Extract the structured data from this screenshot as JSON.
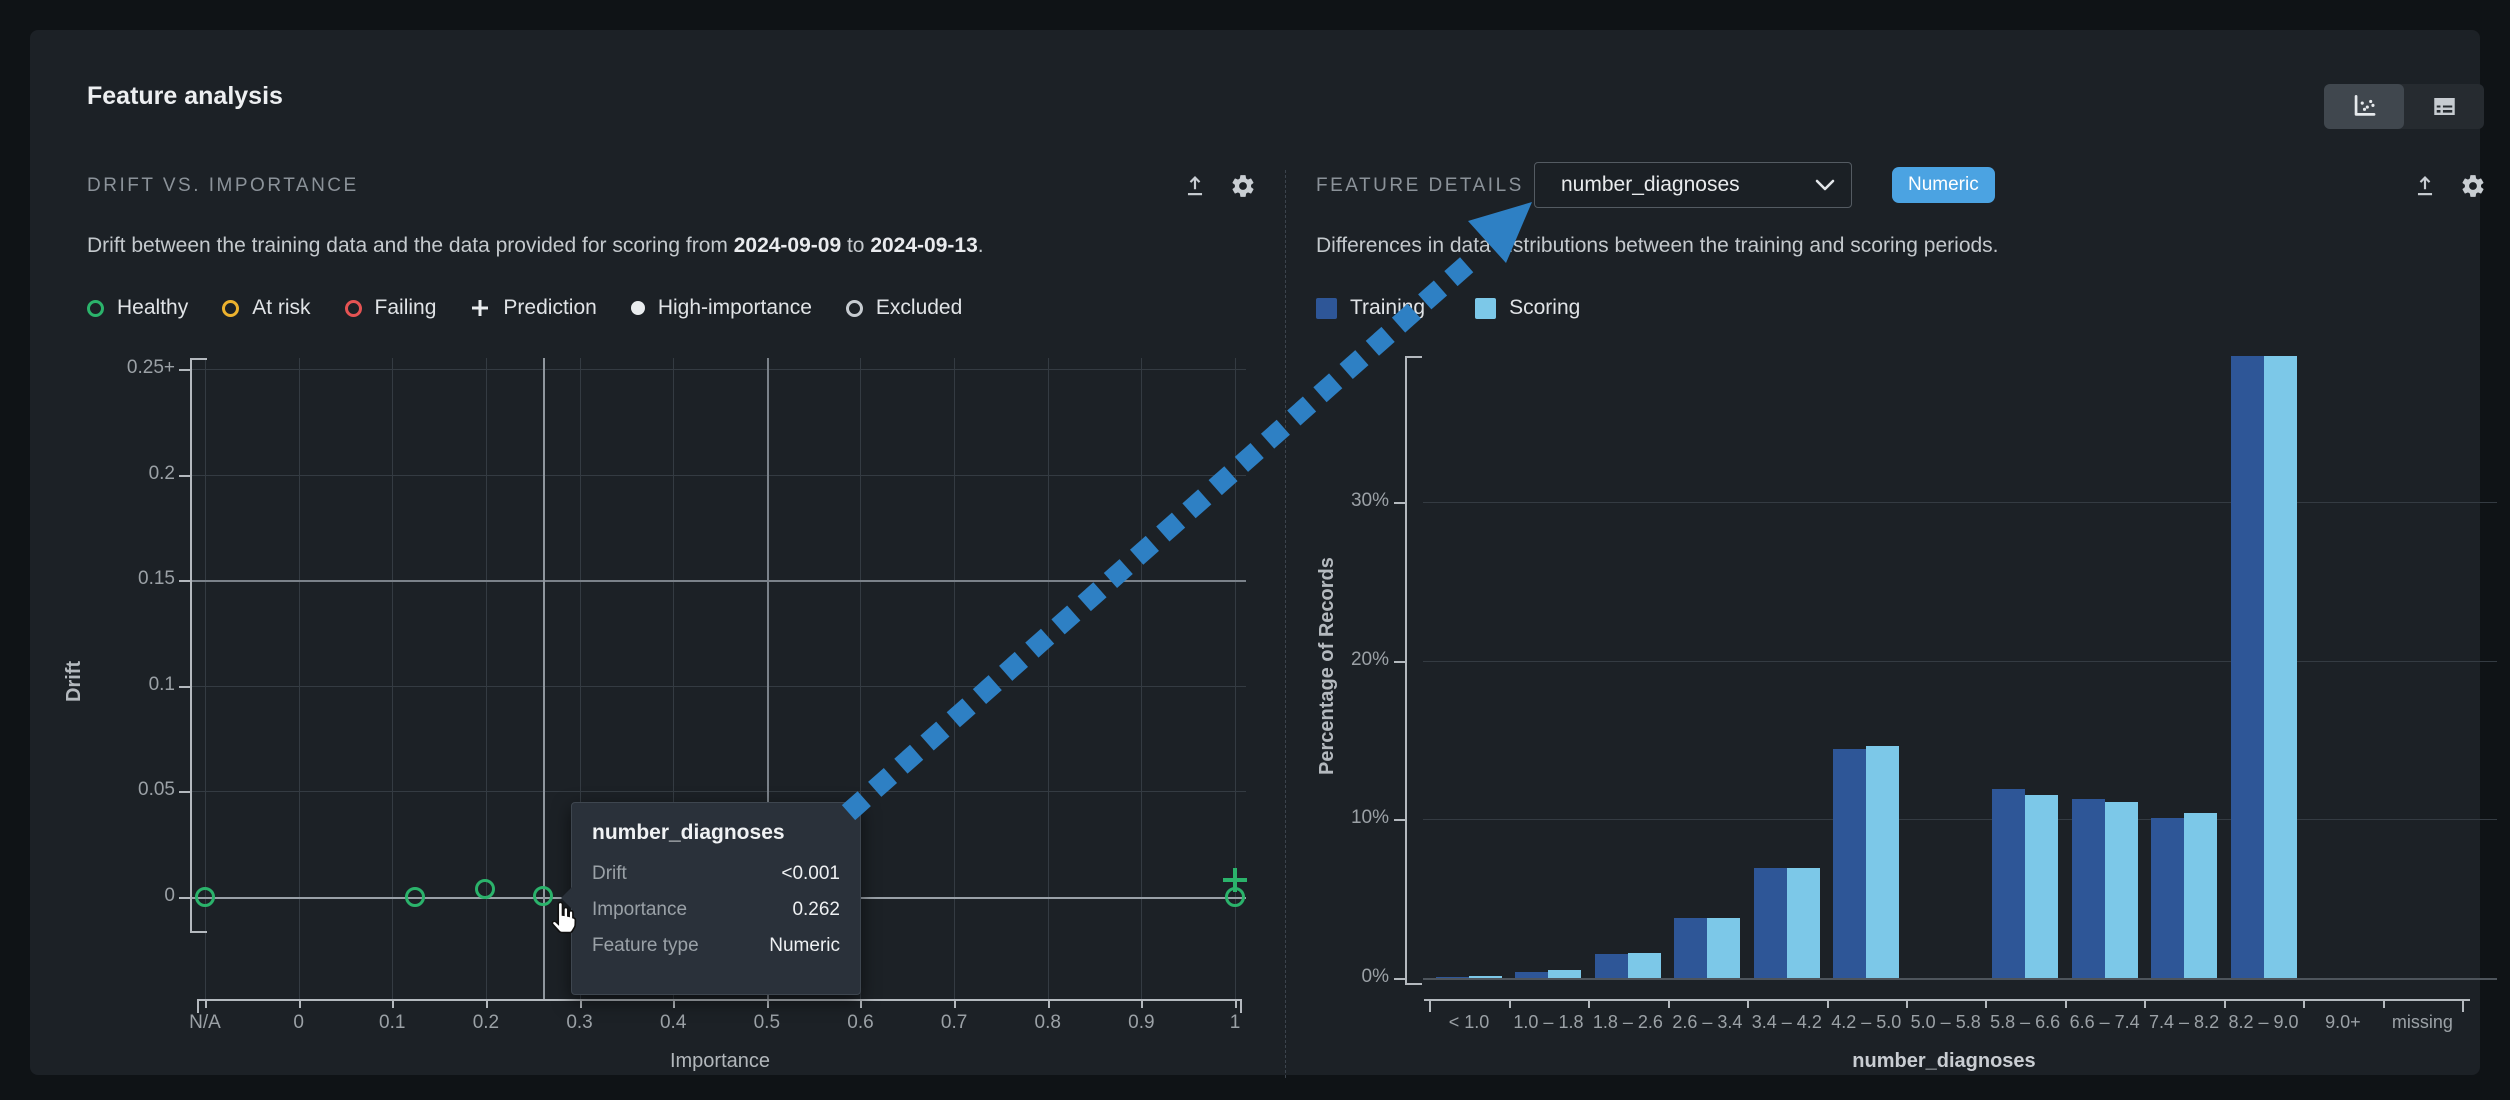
{
  "app": {
    "title": "Feature analysis"
  },
  "view_toggle": {
    "chart_view_icon": "scatter-chart-icon",
    "table_view_icon": "table-icon",
    "active": "chart"
  },
  "colors": {
    "healthy": "#2bb36b",
    "at_risk": "#ecb22e",
    "failing": "#e55353",
    "marker_white": "#e9ecee",
    "excluded": "#c6cbd0",
    "training": "#2e5697",
    "scoring": "#7cc8e8",
    "arrow": "#2e80c4",
    "badge_bg": "#4ba3e2",
    "grid": "#343b42",
    "grid_bright": "#7b828a",
    "zero_line": "#9aa1a8",
    "axis": "#b4b9be",
    "crosshair": "#8f969d"
  },
  "left_panel": {
    "title": "DRIFT VS. IMPORTANCE",
    "subtitle": {
      "prefix": "Drift between the training data and the data provided for scoring from ",
      "start_date": "2024-09-09",
      "middle": " to ",
      "end_date": "2024-09-13",
      "suffix": "."
    },
    "legend": [
      {
        "label": "Healthy",
        "marker": "ring",
        "color": "#2bb36b"
      },
      {
        "label": "At risk",
        "marker": "ring",
        "color": "#ecb22e"
      },
      {
        "label": "Failing",
        "marker": "ring",
        "color": "#e55353"
      },
      {
        "label": "Prediction",
        "marker": "plus",
        "color": "#e9ecee"
      },
      {
        "label": "High-importance",
        "marker": "dot",
        "color": "#e9ecee"
      },
      {
        "label": "Excluded",
        "marker": "ring",
        "color": "#c6cbd0"
      }
    ]
  },
  "right_panel": {
    "title": "FEATURE DETAILS",
    "feature_selector": {
      "value": "number_diagnoses",
      "icon": "chevron-down-icon"
    },
    "type_badge": "Numeric",
    "subtitle": "Differences in data distributions between the training and scoring periods.",
    "legend": [
      {
        "label": "Training",
        "color": "#2e5697"
      },
      {
        "label": "Scoring",
        "color": "#7cc8e8"
      }
    ]
  },
  "tooltip": {
    "feature": "number_diagnoses",
    "rows": [
      {
        "label": "Drift",
        "value": "<0.001"
      },
      {
        "label": "Importance",
        "value": "0.262"
      },
      {
        "label": "Feature type",
        "value": "Numeric"
      }
    ]
  },
  "chart_data": [
    {
      "type": "scatter",
      "title": "Drift vs. Importance",
      "xlabel": "Importance",
      "ylabel": "Drift",
      "x_ticks": [
        "N/A",
        "0",
        "0.1",
        "0.2",
        "0.3",
        "0.4",
        "0.5",
        "0.6",
        "0.7",
        "0.8",
        "0.9",
        "1"
      ],
      "y_ticks": [
        "0",
        "0.05",
        "0.1",
        "0.15",
        "0.2",
        "0.25+"
      ],
      "xlim": [
        0,
        1
      ],
      "ylim": [
        0,
        0.25
      ],
      "grid": true,
      "thresholds": {
        "drift": 0.15,
        "importance": 0.5
      },
      "points": [
        {
          "importance": "N/A",
          "drift": 0,
          "status": "healthy",
          "marker": "circle"
        },
        {
          "importance": 0.125,
          "drift": 0,
          "status": "healthy",
          "marker": "circle"
        },
        {
          "importance": 0.2,
          "drift": 0.004,
          "status": "healthy",
          "marker": "circle"
        },
        {
          "importance": 0.262,
          "drift": 0.0005,
          "status": "healthy",
          "marker": "circle",
          "feature": "number_diagnoses",
          "hovered": true
        },
        {
          "importance": 1,
          "drift": 0.008,
          "status": "healthy",
          "marker": "plus"
        },
        {
          "importance": 1,
          "drift": 0,
          "status": "healthy",
          "marker": "circle"
        }
      ]
    },
    {
      "type": "bar",
      "categories": [
        "< 1.0",
        "1.0 – 1.8",
        "1.8 – 2.6",
        "2.6 – 3.4",
        "3.4 – 4.2",
        "4.2 – 5.0",
        "5.0 – 5.8",
        "5.8 – 6.6",
        "6.6 – 7.4",
        "7.4 – 8.2",
        "8.2 – 9.0",
        "9.0+",
        "missing"
      ],
      "series": [
        {
          "name": "Training",
          "color": "#2e5697",
          "values": [
            0.05,
            0.4,
            1.5,
            3.8,
            6.9,
            14.4,
            0,
            11.9,
            11.3,
            10.1,
            39.3,
            0,
            0
          ]
        },
        {
          "name": "Scoring",
          "color": "#7cc8e8",
          "values": [
            0.1,
            0.5,
            1.6,
            3.8,
            6.9,
            14.6,
            0,
            11.5,
            11.1,
            10.4,
            39.5,
            0,
            0
          ]
        }
      ],
      "xlabel": "number_diagnoses",
      "ylabel": "Percentage of Records",
      "y_ticks": [
        "0%",
        "10%",
        "20%",
        "30%"
      ],
      "ylim": [
        0,
        40
      ],
      "grid": true,
      "legend_position": "top-left"
    }
  ],
  "annotation_arrow": {
    "color": "#2e80c4",
    "points_to": "feature-selector"
  }
}
